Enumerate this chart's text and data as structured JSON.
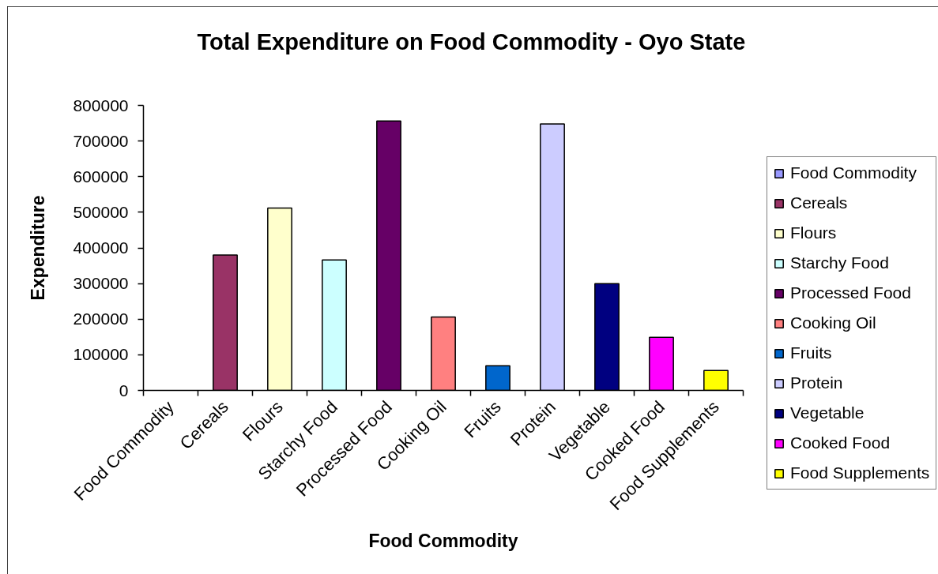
{
  "chart_data": {
    "type": "bar",
    "title": "Total Expenditure on Food Commodity - Oyo State",
    "xlabel": "Food Commodity",
    "ylabel": "Expenditure",
    "categories": [
      "Food Commodity",
      "Cereals",
      "Flours",
      "Starchy Food",
      "Processed Food",
      "Cooking Oil",
      "Fruits",
      "Protein",
      "Vegetable",
      "Cooked Food",
      "Food Supplements"
    ],
    "stacked": true,
    "series": [
      {
        "name": "Food Commodity",
        "color": "#9999ff",
        "values": [
          null,
          null,
          null,
          null,
          null,
          null,
          null,
          null,
          null,
          null,
          null
        ]
      },
      {
        "name": "Cereals",
        "color": "#993366",
        "values": [
          null,
          380000,
          null,
          null,
          null,
          null,
          null,
          null,
          null,
          null,
          null
        ]
      },
      {
        "name": "Flours",
        "color": "#ffffcc",
        "values": [
          null,
          null,
          512000,
          null,
          null,
          null,
          null,
          null,
          null,
          null,
          null
        ]
      },
      {
        "name": "Starchy Food",
        "color": "#ccffff",
        "values": [
          null,
          null,
          null,
          366000,
          null,
          null,
          null,
          null,
          null,
          null,
          null
        ]
      },
      {
        "name": "Processed Food",
        "color": "#660066",
        "values": [
          null,
          null,
          null,
          null,
          756000,
          null,
          null,
          null,
          null,
          null,
          null
        ]
      },
      {
        "name": "Cooking Oil",
        "color": "#ff8080",
        "values": [
          null,
          null,
          null,
          null,
          null,
          206000,
          null,
          null,
          null,
          null,
          null
        ]
      },
      {
        "name": "Fruits",
        "color": "#0066cc",
        "values": [
          null,
          null,
          null,
          null,
          null,
          null,
          69000,
          null,
          null,
          null,
          null
        ]
      },
      {
        "name": "Protein",
        "color": "#ccccff",
        "values": [
          null,
          null,
          null,
          null,
          null,
          null,
          null,
          748000,
          null,
          null,
          null
        ]
      },
      {
        "name": "Vegetable",
        "color": "#000080",
        "values": [
          null,
          null,
          null,
          null,
          null,
          null,
          null,
          null,
          300000,
          null,
          null
        ]
      },
      {
        "name": "Cooked Food",
        "color": "#ff00ff",
        "values": [
          null,
          null,
          null,
          null,
          null,
          null,
          null,
          null,
          null,
          149000,
          null
        ]
      },
      {
        "name": "Food Supplements",
        "color": "#ffff00",
        "values": [
          null,
          null,
          null,
          null,
          null,
          null,
          null,
          null,
          null,
          null,
          56000
        ]
      }
    ],
    "ylim": [
      0,
      800000
    ],
    "yticks": [
      0,
      100000,
      200000,
      300000,
      400000,
      500000,
      600000,
      700000,
      800000
    ],
    "legend": "right"
  }
}
